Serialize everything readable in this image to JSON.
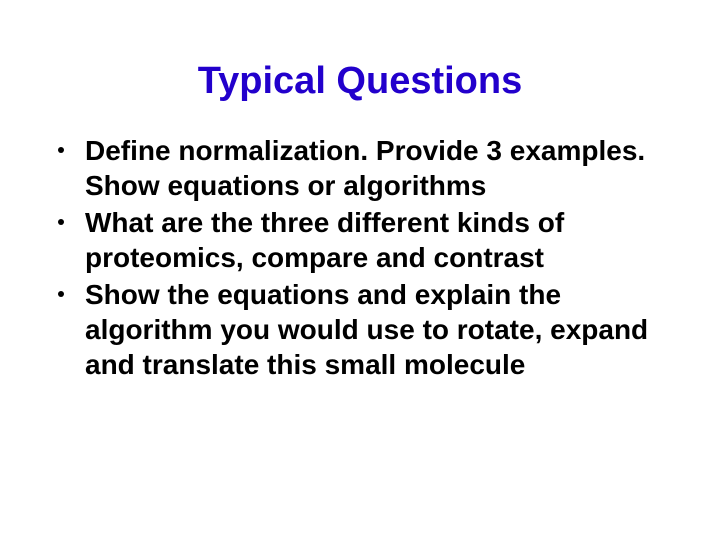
{
  "title": {
    "text": "Typical Questions",
    "color": "#2200cc",
    "fontsize": 38
  },
  "bullets": {
    "fontsize": 28,
    "line_height": 1.25,
    "text_color": "#000000",
    "items": [
      "Define normalization.  Provide 3 examples. Show equations or algorithms",
      "What are the three different kinds of proteomics, compare and contrast",
      "Show the equations and explain the algorithm you would use to rotate, expand and translate this small molecule"
    ]
  }
}
